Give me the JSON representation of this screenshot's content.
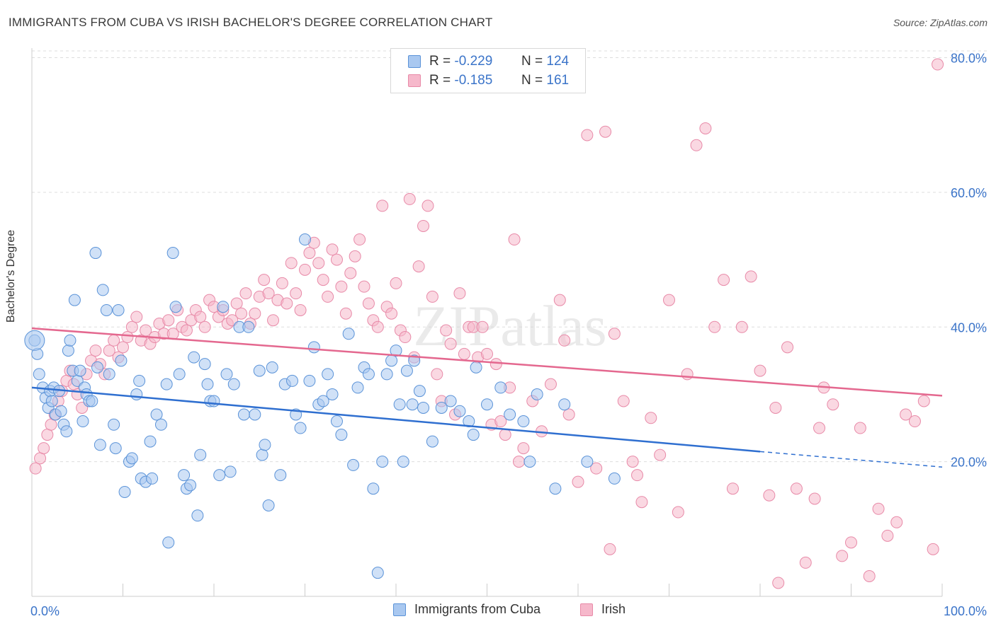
{
  "title": "IMMIGRANTS FROM CUBA VS IRISH BACHELOR'S DEGREE CORRELATION CHART",
  "source": "Source: ZipAtlas.com",
  "watermark": "ZIPatlas",
  "legend_top": {
    "rows": [
      {
        "r_label": "R =",
        "r_value": "-0.229",
        "n_label": "N =",
        "n_value": "124"
      },
      {
        "r_label": "R =",
        "r_value": "-0.185",
        "n_label": "N =",
        "n_value": "161"
      }
    ]
  },
  "legend_bottom": [
    "Immigrants from Cuba",
    "Irish"
  ],
  "colors": {
    "blue_fill": "#a9c8f0",
    "blue_stroke": "#5b93d8",
    "blue_line": "#2f6fd0",
    "pink_fill": "#f6b8cb",
    "pink_stroke": "#e88aa8",
    "pink_line": "#e4688f",
    "axis_text": "#3b74c9",
    "grid": "#dddddd"
  },
  "chart_data": {
    "type": "scatter",
    "xlabel": "",
    "ylabel": "Bachelor's Degree",
    "x_tick_labels": [
      "0.0%",
      "100.0%"
    ],
    "y_tick_labels": [
      "20.0%",
      "40.0%",
      "60.0%",
      "80.0%"
    ],
    "xlim": [
      0,
      100
    ],
    "ylim": [
      0,
      81
    ],
    "grid": true,
    "legend_position": "top-center",
    "series": [
      {
        "name": "Immigrants from Cuba",
        "n": 124,
        "r": -0.229,
        "trend": {
          "x0": 0,
          "y0": 31.0,
          "x1": 80,
          "y1": 21.5,
          "dashed_to_x": 100,
          "dashed_to_y": 19.2
        },
        "points": [
          [
            0.3,
            38
          ],
          [
            0.6,
            36
          ],
          [
            0.8,
            33
          ],
          [
            1.2,
            31
          ],
          [
            1.5,
            29.5
          ],
          [
            1.8,
            28
          ],
          [
            2,
            30.5
          ],
          [
            2.2,
            29
          ],
          [
            2.4,
            31
          ],
          [
            2.6,
            27
          ],
          [
            3,
            30.5
          ],
          [
            3.2,
            27.5
          ],
          [
            3.5,
            25.5
          ],
          [
            3.8,
            24.5
          ],
          [
            4,
            36.5
          ],
          [
            4.2,
            38
          ],
          [
            4.5,
            33.5
          ],
          [
            4.7,
            44
          ],
          [
            5,
            32
          ],
          [
            5.3,
            33.5
          ],
          [
            5.6,
            26
          ],
          [
            5.8,
            31
          ],
          [
            6,
            30
          ],
          [
            6.3,
            29
          ],
          [
            6.6,
            29
          ],
          [
            7,
            51
          ],
          [
            7.2,
            34
          ],
          [
            7.5,
            22.5
          ],
          [
            7.8,
            45.5
          ],
          [
            8.2,
            42.5
          ],
          [
            8.5,
            33
          ],
          [
            9,
            25.5
          ],
          [
            9.2,
            22
          ],
          [
            9.5,
            42.5
          ],
          [
            9.8,
            35
          ],
          [
            10.2,
            15.5
          ],
          [
            10.7,
            20
          ],
          [
            11,
            20.5
          ],
          [
            11.5,
            30
          ],
          [
            11.8,
            32
          ],
          [
            12,
            17.5
          ],
          [
            12.5,
            17
          ],
          [
            13,
            23
          ],
          [
            13.2,
            17.5
          ],
          [
            13.7,
            27
          ],
          [
            14.2,
            25.5
          ],
          [
            14.8,
            31.5
          ],
          [
            15,
            8
          ],
          [
            15.5,
            51
          ],
          [
            15.8,
            43
          ],
          [
            16.2,
            33
          ],
          [
            16.7,
            18
          ],
          [
            17,
            16
          ],
          [
            17.4,
            16.5
          ],
          [
            17.8,
            35.5
          ],
          [
            18.2,
            12
          ],
          [
            18.5,
            21
          ],
          [
            19,
            34.5
          ],
          [
            19.3,
            31.5
          ],
          [
            19.6,
            29
          ],
          [
            20,
            29
          ],
          [
            20.6,
            18
          ],
          [
            21,
            43
          ],
          [
            21.4,
            33
          ],
          [
            21.8,
            18.5
          ],
          [
            22.2,
            31.5
          ],
          [
            22.8,
            40
          ],
          [
            23.3,
            27
          ],
          [
            23.8,
            40
          ],
          [
            24.5,
            27
          ],
          [
            25,
            33.5
          ],
          [
            25.3,
            21
          ],
          [
            25.6,
            22.5
          ],
          [
            26,
            13.5
          ],
          [
            26.4,
            34
          ],
          [
            27.3,
            18
          ],
          [
            27.8,
            31.5
          ],
          [
            28.6,
            32
          ],
          [
            29,
            27
          ],
          [
            29.5,
            25
          ],
          [
            30,
            53
          ],
          [
            30.5,
            32
          ],
          [
            31,
            37
          ],
          [
            31.5,
            28.5
          ],
          [
            32,
            29
          ],
          [
            32.5,
            33
          ],
          [
            33,
            30
          ],
          [
            33.5,
            26
          ],
          [
            34,
            24
          ],
          [
            34.8,
            39
          ],
          [
            35.3,
            19.5
          ],
          [
            35.8,
            31
          ],
          [
            36.5,
            34
          ],
          [
            37,
            33
          ],
          [
            37.5,
            16
          ],
          [
            38,
            3.5
          ],
          [
            38.5,
            20
          ],
          [
            39,
            33
          ],
          [
            39.5,
            35
          ],
          [
            40,
            36.5
          ],
          [
            40.4,
            28.5
          ],
          [
            40.8,
            20
          ],
          [
            41.2,
            33.5
          ],
          [
            41.8,
            28.5
          ],
          [
            42,
            35
          ],
          [
            42.6,
            30.5
          ],
          [
            43,
            28
          ],
          [
            44,
            23
          ],
          [
            45,
            28
          ],
          [
            46,
            29
          ],
          [
            47,
            27.5
          ],
          [
            48,
            26
          ],
          [
            48.5,
            24
          ],
          [
            48.8,
            34
          ],
          [
            50,
            28.5
          ],
          [
            51.5,
            31
          ],
          [
            52.5,
            27
          ],
          [
            54,
            26
          ],
          [
            54.7,
            20
          ],
          [
            55.5,
            30
          ],
          [
            57.5,
            16
          ],
          [
            58.5,
            28.5
          ],
          [
            61,
            20
          ],
          [
            64,
            17.5
          ]
        ]
      },
      {
        "name": "Irish",
        "n": 161,
        "r": -0.185,
        "trend": {
          "x0": 0,
          "y0": 39.8,
          "x1": 100,
          "y1": 29.8
        },
        "points": [
          [
            0.4,
            19
          ],
          [
            0.9,
            20.5
          ],
          [
            1.3,
            22
          ],
          [
            1.7,
            24
          ],
          [
            2.1,
            25.5
          ],
          [
            2.5,
            27
          ],
          [
            2.9,
            29
          ],
          [
            3.3,
            30.5
          ],
          [
            3.8,
            32
          ],
          [
            4.2,
            33.5
          ],
          [
            4.6,
            31.5
          ],
          [
            5,
            30
          ],
          [
            5.5,
            28
          ],
          [
            6,
            33
          ],
          [
            6.5,
            35
          ],
          [
            7,
            36.5
          ],
          [
            7.5,
            34.5
          ],
          [
            8,
            33
          ],
          [
            8.5,
            36.5
          ],
          [
            9,
            38
          ],
          [
            9.5,
            35.5
          ],
          [
            10,
            37
          ],
          [
            10.5,
            38.5
          ],
          [
            11,
            40
          ],
          [
            11.5,
            41.5
          ],
          [
            12,
            38
          ],
          [
            12.5,
            39.5
          ],
          [
            13,
            37.5
          ],
          [
            13.5,
            38.5
          ],
          [
            14,
            40.5
          ],
          [
            14.5,
            39
          ],
          [
            15,
            41
          ],
          [
            15.5,
            39
          ],
          [
            16,
            42.5
          ],
          [
            16.5,
            40
          ],
          [
            17,
            39.5
          ],
          [
            17.5,
            41
          ],
          [
            18,
            42.5
          ],
          [
            18.5,
            41.5
          ],
          [
            19,
            40
          ],
          [
            19.5,
            44
          ],
          [
            20,
            43
          ],
          [
            20.5,
            41.5
          ],
          [
            21,
            42.5
          ],
          [
            21.5,
            40.5
          ],
          [
            22,
            41
          ],
          [
            22.5,
            43.5
          ],
          [
            23,
            42
          ],
          [
            23.5,
            45
          ],
          [
            24,
            40.5
          ],
          [
            24.5,
            42
          ],
          [
            25,
            44.5
          ],
          [
            25.5,
            47
          ],
          [
            26,
            45
          ],
          [
            26.5,
            41
          ],
          [
            27,
            44
          ],
          [
            27.5,
            46.5
          ],
          [
            28,
            43.5
          ],
          [
            28.5,
            49.5
          ],
          [
            29,
            45
          ],
          [
            29.5,
            42.5
          ],
          [
            30,
            48.5
          ],
          [
            30.5,
            51
          ],
          [
            31,
            52.5
          ],
          [
            31.5,
            49.5
          ],
          [
            32,
            47
          ],
          [
            32.5,
            44.5
          ],
          [
            33,
            51.5
          ],
          [
            33.5,
            50
          ],
          [
            34,
            46
          ],
          [
            34.5,
            42
          ],
          [
            35,
            48
          ],
          [
            35.5,
            50.5
          ],
          [
            36,
            53
          ],
          [
            36.5,
            46
          ],
          [
            37,
            43.5
          ],
          [
            37.5,
            41
          ],
          [
            38,
            40
          ],
          [
            38.5,
            58
          ],
          [
            39,
            43
          ],
          [
            39.5,
            42
          ],
          [
            40,
            46.5
          ],
          [
            40.5,
            39.5
          ],
          [
            41,
            38.5
          ],
          [
            41.5,
            59
          ],
          [
            42,
            35.5
          ],
          [
            42.5,
            49
          ],
          [
            43,
            55
          ],
          [
            43.5,
            58
          ],
          [
            44,
            44.5
          ],
          [
            44.5,
            33
          ],
          [
            45,
            29
          ],
          [
            45.5,
            39.5
          ],
          [
            46,
            37.5
          ],
          [
            46.5,
            27
          ],
          [
            47,
            45
          ],
          [
            47.5,
            36
          ],
          [
            48,
            40
          ],
          [
            48.5,
            40
          ],
          [
            49,
            35.5
          ],
          [
            49.5,
            40
          ],
          [
            50,
            36
          ],
          [
            50.5,
            25.5
          ],
          [
            51,
            34.5
          ],
          [
            51.5,
            26
          ],
          [
            52,
            24
          ],
          [
            52.5,
            31
          ],
          [
            53,
            53
          ],
          [
            53.5,
            20
          ],
          [
            54,
            22
          ],
          [
            55,
            29
          ],
          [
            56,
            24.5
          ],
          [
            57,
            31.5
          ],
          [
            58,
            44
          ],
          [
            58.5,
            38
          ],
          [
            59,
            27
          ],
          [
            60,
            17
          ],
          [
            61,
            68.5
          ],
          [
            62,
            19
          ],
          [
            63,
            69
          ],
          [
            64,
            39
          ],
          [
            65,
            29
          ],
          [
            66,
            20
          ],
          [
            67,
            14
          ],
          [
            68,
            26.5
          ],
          [
            69,
            21
          ],
          [
            70,
            44
          ],
          [
            71,
            12.5
          ],
          [
            72,
            33
          ],
          [
            73,
            67
          ],
          [
            74,
            69.5
          ],
          [
            75,
            40
          ],
          [
            76,
            47
          ],
          [
            77,
            16
          ],
          [
            78,
            40
          ],
          [
            79,
            47.5
          ],
          [
            80,
            33.5
          ],
          [
            81,
            15
          ],
          [
            82,
            2
          ],
          [
            83,
            37
          ],
          [
            84,
            16
          ],
          [
            85,
            5
          ],
          [
            86,
            14.5
          ],
          [
            87,
            31
          ],
          [
            88,
            28.5
          ],
          [
            89,
            6
          ],
          [
            90,
            8
          ],
          [
            91,
            25
          ],
          [
            92,
            3
          ],
          [
            93,
            13
          ],
          [
            94,
            9
          ],
          [
            95,
            11
          ],
          [
            96,
            27
          ],
          [
            97,
            26
          ],
          [
            98,
            29
          ],
          [
            99,
            7
          ],
          [
            99.5,
            79
          ],
          [
            63.5,
            7
          ],
          [
            81.7,
            28
          ],
          [
            66.5,
            18
          ],
          [
            86.5,
            25
          ]
        ]
      }
    ]
  }
}
